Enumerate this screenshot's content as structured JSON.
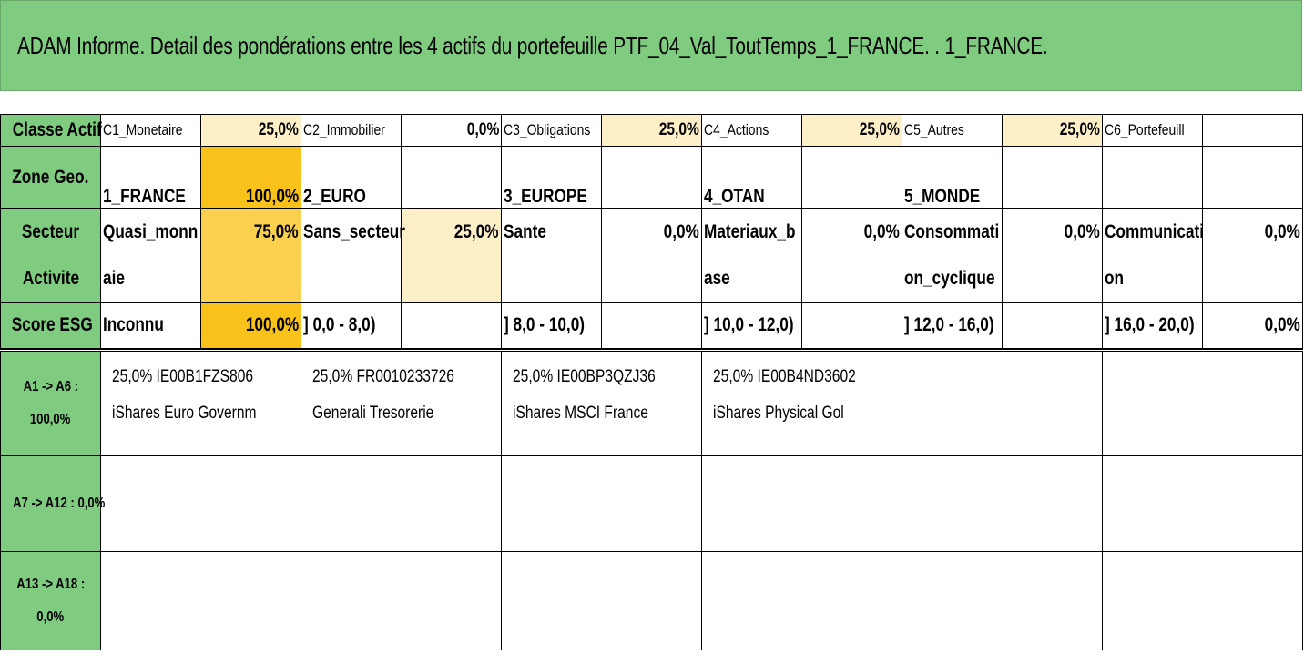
{
  "title": "ADAM Informe. Detail des pondérations entre les 4 actifs du portefeuille PTF_04_Val_ToutTemps_1_FRANCE. . 1_FRANCE.",
  "colors": {
    "header_green": "#7fcb7f",
    "weight_light": "#fdf0c9",
    "weight_mid": "#fbd04f",
    "weight_strong": "#f9c21b"
  },
  "classe_actif": {
    "label": "Classe Actif",
    "items": [
      {
        "name": "C1_Monetaire",
        "pct": "25,0%"
      },
      {
        "name": "C2_Immobilier",
        "pct": "0,0%"
      },
      {
        "name": "C3_Obligations",
        "pct": "25,0%"
      },
      {
        "name": "C4_Actions",
        "pct": "25,0%"
      },
      {
        "name": "C5_Autres",
        "pct": "25,0%"
      },
      {
        "name": "C6_Portefeuill",
        "pct": ""
      }
    ]
  },
  "zone_geo": {
    "label": "Zone Geo.",
    "items": [
      {
        "name": "1_FRANCE",
        "pct": "100,0%"
      },
      {
        "name": "2_EURO",
        "pct": ""
      },
      {
        "name": "3_EUROPE",
        "pct": ""
      },
      {
        "name": "4_OTAN",
        "pct": ""
      },
      {
        "name": "5_MONDE",
        "pct": ""
      },
      {
        "name": "",
        "pct": ""
      }
    ]
  },
  "secteur": {
    "label_line1": "Secteur",
    "label_line2": "Activite",
    "items": [
      {
        "line1": "Quasi_monn",
        "line2": "aie",
        "pct": "75,0%"
      },
      {
        "line1": "Sans_secteur",
        "line2": "",
        "pct": "25,0%"
      },
      {
        "line1": "Sante",
        "line2": "",
        "pct": "0,0%"
      },
      {
        "line1": "Materiaux_b",
        "line2": "ase",
        "pct": "0,0%"
      },
      {
        "line1": "Consommati",
        "line2": "on_cyclique",
        "pct": "0,0%"
      },
      {
        "line1": "Communicati",
        "line2": "on",
        "pct": "0,0%"
      }
    ]
  },
  "score_esg": {
    "label": "Score ESG",
    "items": [
      {
        "name": "Inconnu",
        "pct": "100,0%"
      },
      {
        "name": "] 0,0 - 8,0)",
        "pct": ""
      },
      {
        "name": "] 8,0 - 10,0)",
        "pct": ""
      },
      {
        "name": "] 10,0 - 12,0)",
        "pct": ""
      },
      {
        "name": "] 12,0 - 16,0)",
        "pct": ""
      },
      {
        "name": "] 16,0 - 20,0)",
        "pct": "0,0%"
      }
    ]
  },
  "asset_groups": [
    {
      "label_line1": "A1 -> A6 :",
      "label_line2": "100,0%",
      "assets": [
        {
          "line1": "25,0% IE00B1FZS806",
          "line2": "iShares Euro Governm"
        },
        {
          "line1": "25,0% FR0010233726",
          "line2": "Generali Tresorerie"
        },
        {
          "line1": "25,0% IE00BP3QZJ36",
          "line2": "iShares MSCI France"
        },
        {
          "line1": "25,0% IE00B4ND3602",
          "line2": "iShares Physical Gol"
        },
        {
          "line1": "",
          "line2": ""
        },
        {
          "line1": "",
          "line2": ""
        }
      ]
    },
    {
      "label_line1": "A7 -> A12 : 0,0%",
      "label_line2": ""
    },
    {
      "label_line1": "A13 -> A18 :",
      "label_line2": "0,0%"
    }
  ]
}
